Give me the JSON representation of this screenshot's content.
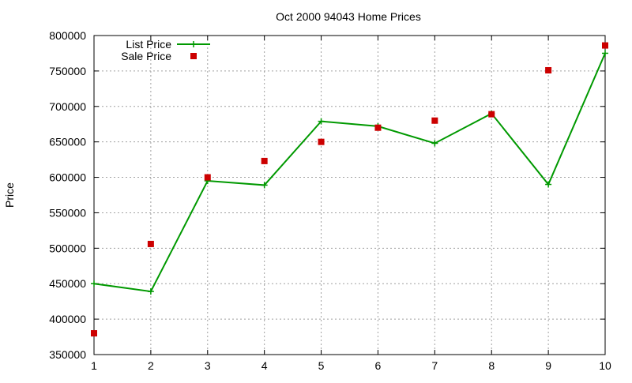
{
  "chart_data": {
    "type": "line",
    "title": "Oct 2000 94043 Home Prices",
    "xlabel": "",
    "ylabel": "Price",
    "xlim": [
      1,
      10
    ],
    "ylim": [
      350000,
      800000
    ],
    "xticks": [
      1,
      2,
      3,
      4,
      5,
      6,
      7,
      8,
      9,
      10
    ],
    "yticks": [
      350000,
      400000,
      450000,
      500000,
      550000,
      600000,
      650000,
      700000,
      750000,
      800000
    ],
    "grid": true,
    "legend_position": "top-left",
    "x": [
      1,
      2,
      3,
      4,
      5,
      6,
      7,
      8,
      9,
      10
    ],
    "series": [
      {
        "name": "List Price",
        "style": "line+plus-markers",
        "color": "#009900",
        "values": [
          450000,
          439000,
          595000,
          589000,
          679000,
          672000,
          648000,
          690000,
          590000,
          775000
        ]
      },
      {
        "name": "Sale Price",
        "style": "square-markers",
        "color": "#cc0000",
        "values": [
          380000,
          506000,
          600000,
          623000,
          650000,
          670000,
          680000,
          689000,
          751000,
          786000
        ]
      }
    ]
  }
}
